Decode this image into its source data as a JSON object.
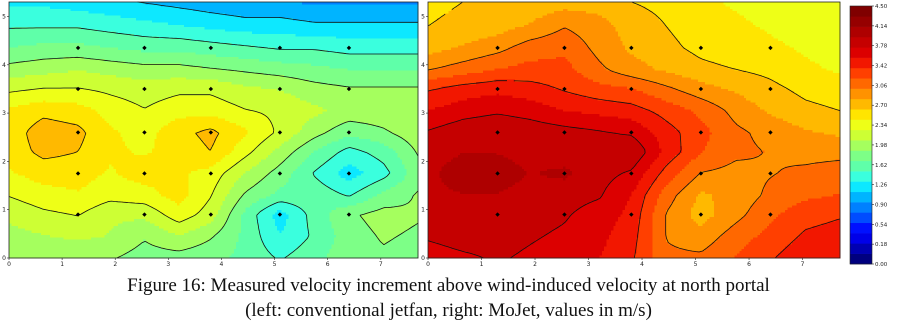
{
  "chart_data": [
    {
      "type": "heatmap",
      "panel": "left",
      "x_ticks": [
        "0",
        "1",
        "2",
        "3",
        "4",
        "5",
        "6",
        "7"
      ],
      "y_ticks": [
        "0",
        "1",
        "2",
        "3",
        "4",
        "5"
      ],
      "xlim": [
        0,
        7.7
      ],
      "ylim": [
        0,
        5.3
      ],
      "measurement_points": [
        [
          1.3,
          0.9
        ],
        [
          2.55,
          0.9
        ],
        [
          3.8,
          0.9
        ],
        [
          5.1,
          0.9
        ],
        [
          6.4,
          0.9
        ],
        [
          1.3,
          1.75
        ],
        [
          2.55,
          1.75
        ],
        [
          3.8,
          1.75
        ],
        [
          5.1,
          1.75
        ],
        [
          6.4,
          1.75
        ],
        [
          1.3,
          2.6
        ],
        [
          2.55,
          2.6
        ],
        [
          3.8,
          2.6
        ],
        [
          5.1,
          2.6
        ],
        [
          6.4,
          2.6
        ],
        [
          1.3,
          3.5
        ],
        [
          2.55,
          3.5
        ],
        [
          3.8,
          3.5
        ],
        [
          5.1,
          3.5
        ],
        [
          6.4,
          3.5
        ],
        [
          1.3,
          4.35
        ],
        [
          2.55,
          4.35
        ],
        [
          3.8,
          4.35
        ],
        [
          5.1,
          4.35
        ],
        [
          6.4,
          4.35
        ]
      ],
      "grid_x": [
        0,
        0.65,
        1.3,
        1.9,
        2.55,
        3.2,
        3.8,
        4.45,
        5.1,
        5.75,
        6.4,
        7.05,
        7.7
      ],
      "grid_y": [
        0,
        0.45,
        0.9,
        1.3,
        1.75,
        2.2,
        2.6,
        3.05,
        3.5,
        3.9,
        4.35,
        4.8,
        5.3
      ],
      "values": [
        [
          2.0,
          2.0,
          2.0,
          2.0,
          1.9,
          1.9,
          1.85,
          1.75,
          1.6,
          1.75,
          1.9,
          1.95,
          1.9
        ],
        [
          2.1,
          2.15,
          2.2,
          2.15,
          2.0,
          2.15,
          2.0,
          1.75,
          1.45,
          1.65,
          1.9,
          2.0,
          1.95
        ],
        [
          2.2,
          2.3,
          2.35,
          2.2,
          2.2,
          2.45,
          2.25,
          1.75,
          1.35,
          1.7,
          1.95,
          2.05,
          2.0
        ],
        [
          2.35,
          2.45,
          2.5,
          2.4,
          2.45,
          2.6,
          2.35,
          1.95,
          1.75,
          1.75,
          1.6,
          1.85,
          2.0
        ],
        [
          2.5,
          2.6,
          2.6,
          2.5,
          2.6,
          2.55,
          2.45,
          2.15,
          1.9,
          1.6,
          1.35,
          1.55,
          1.9
        ],
        [
          2.6,
          2.75,
          2.7,
          2.55,
          2.5,
          2.6,
          2.7,
          2.4,
          2.1,
          1.8,
          1.55,
          1.7,
          2.0
        ],
        [
          2.6,
          2.8,
          2.75,
          2.55,
          2.45,
          2.65,
          2.75,
          2.55,
          2.3,
          2.05,
          1.85,
          1.95,
          2.1
        ],
        [
          2.55,
          2.65,
          2.6,
          2.45,
          2.35,
          2.45,
          2.45,
          2.35,
          2.3,
          2.2,
          2.1,
          2.1,
          2.1
        ],
        [
          2.3,
          2.35,
          2.35,
          2.3,
          2.25,
          2.3,
          2.3,
          2.2,
          2.15,
          2.05,
          2.0,
          2.0,
          2.0
        ],
        [
          2.05,
          2.1,
          2.15,
          2.1,
          2.05,
          2.05,
          2.0,
          1.95,
          1.9,
          1.85,
          1.8,
          1.8,
          1.8
        ],
        [
          1.8,
          1.85,
          1.85,
          1.8,
          1.75,
          1.75,
          1.7,
          1.65,
          1.6,
          1.6,
          1.55,
          1.55,
          1.55
        ],
        [
          1.6,
          1.6,
          1.6,
          1.55,
          1.5,
          1.45,
          1.4,
          1.35,
          1.35,
          1.3,
          1.3,
          1.3,
          1.3
        ],
        [
          1.4,
          1.4,
          1.35,
          1.3,
          1.25,
          1.2,
          1.15,
          1.1,
          1.1,
          1.05,
          1.05,
          1.05,
          1.05
        ]
      ]
    },
    {
      "type": "heatmap",
      "panel": "right",
      "x_ticks": [
        "0",
        "1",
        "2",
        "3",
        "4",
        "5",
        "6",
        "7"
      ],
      "y_ticks": [
        "0",
        "1",
        "2",
        "3",
        "4",
        "5"
      ],
      "xlim": [
        0,
        7.7
      ],
      "ylim": [
        0,
        5.3
      ],
      "measurement_points": [
        [
          1.3,
          0.9
        ],
        [
          2.55,
          0.9
        ],
        [
          3.8,
          0.9
        ],
        [
          5.1,
          0.9
        ],
        [
          6.4,
          0.9
        ],
        [
          1.3,
          1.75
        ],
        [
          2.55,
          1.75
        ],
        [
          3.8,
          1.75
        ],
        [
          5.1,
          1.75
        ],
        [
          6.4,
          1.75
        ],
        [
          1.3,
          2.6
        ],
        [
          2.55,
          2.6
        ],
        [
          3.8,
          2.6
        ],
        [
          5.1,
          2.6
        ],
        [
          6.4,
          2.6
        ],
        [
          1.3,
          3.5
        ],
        [
          2.55,
          3.5
        ],
        [
          3.8,
          3.5
        ],
        [
          5.1,
          3.5
        ],
        [
          6.4,
          3.5
        ],
        [
          1.3,
          4.35
        ],
        [
          2.55,
          4.35
        ],
        [
          3.8,
          4.35
        ],
        [
          5.1,
          4.35
        ],
        [
          6.4,
          4.35
        ]
      ],
      "grid_x": [
        0,
        0.65,
        1.3,
        1.9,
        2.55,
        3.2,
        3.8,
        4.45,
        5.1,
        5.75,
        6.4,
        7.05,
        7.7
      ],
      "grid_y": [
        0,
        0.45,
        0.9,
        1.3,
        1.75,
        2.2,
        2.6,
        3.05,
        3.5,
        3.9,
        4.35,
        4.8,
        5.3
      ],
      "values": [
        [
          3.7,
          3.75,
          3.8,
          3.75,
          3.7,
          3.6,
          3.45,
          3.1,
          3.1,
          3.25,
          3.4,
          3.55,
          3.6
        ],
        [
          3.8,
          3.85,
          3.85,
          3.8,
          3.75,
          3.65,
          3.5,
          3.05,
          2.95,
          3.15,
          3.3,
          3.45,
          3.5
        ],
        [
          3.85,
          3.9,
          3.9,
          3.85,
          3.8,
          3.7,
          3.55,
          3.05,
          2.8,
          3.0,
          3.2,
          3.35,
          3.4
        ],
        [
          3.9,
          3.95,
          3.95,
          3.9,
          3.85,
          3.8,
          3.6,
          3.15,
          2.85,
          2.95,
          3.1,
          3.2,
          3.25
        ],
        [
          3.9,
          4.1,
          4.05,
          3.95,
          4.0,
          3.85,
          3.75,
          3.35,
          3.05,
          3.0,
          3.05,
          3.1,
          3.15
        ],
        [
          3.85,
          3.95,
          3.95,
          3.9,
          3.85,
          3.85,
          3.95,
          3.55,
          3.25,
          3.1,
          3.05,
          3.0,
          3.0
        ],
        [
          3.8,
          3.9,
          3.95,
          3.9,
          3.85,
          3.8,
          3.75,
          3.5,
          3.3,
          3.1,
          3.0,
          2.9,
          2.85
        ],
        [
          3.6,
          3.7,
          3.75,
          3.7,
          3.6,
          3.55,
          3.5,
          3.35,
          3.2,
          3.0,
          2.85,
          2.75,
          2.7
        ],
        [
          3.4,
          3.5,
          3.55,
          3.5,
          3.4,
          3.3,
          3.25,
          3.1,
          2.95,
          2.85,
          2.75,
          2.65,
          2.6
        ],
        [
          3.05,
          3.15,
          3.25,
          3.3,
          3.3,
          3.1,
          2.95,
          2.85,
          2.75,
          2.7,
          2.65,
          2.55,
          2.5
        ],
        [
          2.8,
          2.9,
          3.0,
          3.15,
          3.2,
          3.0,
          2.85,
          2.75,
          2.65,
          2.6,
          2.55,
          2.5,
          2.45
        ],
        [
          2.7,
          2.75,
          2.8,
          2.9,
          3.05,
          2.95,
          2.8,
          2.7,
          2.6,
          2.55,
          2.5,
          2.45,
          2.4
        ],
        [
          2.65,
          2.7,
          2.7,
          2.75,
          2.8,
          2.8,
          2.7,
          2.65,
          2.55,
          2.5,
          2.45,
          2.4,
          2.35
        ]
      ]
    }
  ],
  "colorbar": {
    "ticks": [
      "4.50",
      "4.14",
      "3.78",
      "3.42",
      "3.06",
      "2.70",
      "2.34",
      "1.98",
      "1.62",
      "1.26",
      "0.90",
      "0.54",
      "0.18",
      "0.00"
    ],
    "levels": [
      0,
      0.18,
      0.36,
      0.54,
      0.72,
      0.9,
      1.08,
      1.26,
      1.44,
      1.62,
      1.8,
      1.98,
      2.16,
      2.34,
      2.52,
      2.7,
      2.88,
      3.06,
      3.24,
      3.42,
      3.6,
      3.78,
      3.96,
      4.14,
      4.32,
      4.5
    ],
    "colors": [
      "#00007f",
      "#0000b2",
      "#0000e8",
      "#0010ff",
      "#004cff",
      "#0080ff",
      "#00b4ff",
      "#0de8ff",
      "#3affde",
      "#5fffa9",
      "#7dff87",
      "#a5ff5e",
      "#cdff34",
      "#eeff17",
      "#ffe500",
      "#ffb900",
      "#ff9200",
      "#ff6800",
      "#ff3f00",
      "#f21700",
      "#dc0000",
      "#c50000",
      "#ae0000",
      "#960000",
      "#800000"
    ]
  },
  "caption": {
    "line1": "Figure 16: Measured velocity increment above wind-induced velocity at north portal",
    "line2": "(left: conventional jetfan, right: MoJet, values in m/s)"
  }
}
